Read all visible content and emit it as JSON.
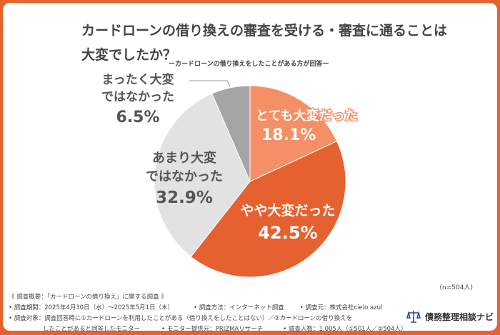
{
  "header": {
    "title_line1": "カードローンの借り換えの審査を受ける・審査に通ることは",
    "title_line2": "大変でしたか？",
    "subtitle": "ーカードローンの借り換えをしたことがある方が回答ー"
  },
  "chart_data": {
    "type": "pie",
    "categories": [
      "とても大変だった",
      "やや大変だった",
      "あまり大変ではなかった",
      "まったく大変ではなかった"
    ],
    "values": [
      18.1,
      42.5,
      32.9,
      6.5
    ],
    "labels": [
      [
        "とても大変だった",
        "18.1%"
      ],
      [
        "やや大変だった",
        "42.5%"
      ],
      [
        "あまり大変",
        "ではなかった",
        "32.9%"
      ],
      [
        "まったく大変",
        "ではなかった",
        "6.5%"
      ]
    ],
    "colors": [
      "#f58f66",
      "#e5612f",
      "#e2e2e2",
      "#a5a5a5"
    ],
    "start": "12 o'clock",
    "direction": "clockwise"
  },
  "sample": "(n=504人)",
  "footer": {
    "line1": "《 調査概要：「カードローンの借り換え」に関する調査 》",
    "period": "• 調査期間：2025年4月30日（水）～2025年5月1日（木）",
    "method": "• 調査方法：インターネット調査",
    "source": "• 調査元：株式会社cielo azul",
    "target1": "• 調査対象：調査回答時に①カードローンを利用したことがある（借り換えをしたことはない）／②カードローンの借り換えを",
    "target2": "したことがあると回答したモニター",
    "provider": "• モニター提供元：PRIZMAリサーチ",
    "count": "• 調査人数：1,005人（①501人／②504人）"
  },
  "logo": {
    "text": "債務整理相談ナビ",
    "icon": "scales-icon"
  }
}
